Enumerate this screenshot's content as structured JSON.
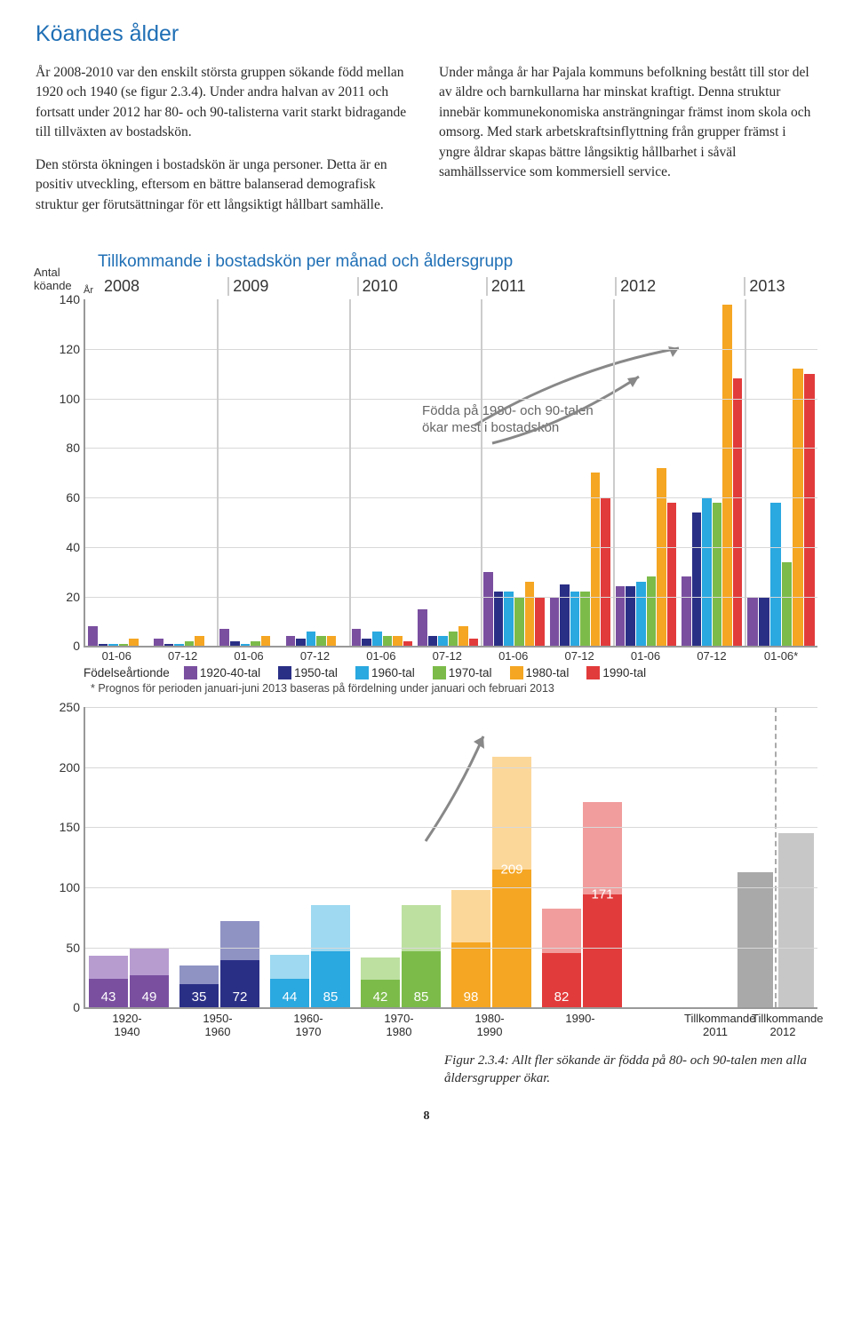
{
  "title": "Köandes ålder",
  "body": {
    "col1": [
      "År 2008-2010 var den enskilt största gruppen sökande född mellan 1920 och 1940 (se figur 2.3.4). Under andra halvan av 2011 och fortsatt under 2012 har 80- och 90-talisterna varit starkt bidragande till tillväxten av bostadskön.",
      "Den största ökningen i bostadskön är unga personer. Detta är en positiv utveckling, eftersom en bättre balanserad demografisk struktur ger förutsättningar för ett långsiktigt hållbart samhälle."
    ],
    "col2": [
      "Under många år har Pajala kommuns befolkning bestått till stor del av äldre och barnkullarna har minskat kraftigt. Denna struktur innebär kommunekonomiska ansträngningar främst inom skola och omsorg. Med stark arbetskraftsinflyttning från grupper främst i yngre åldrar skapas bättre långsiktig hållbarhet i såväl samhällsservice som kommersiell service."
    ]
  },
  "chart1": {
    "title": "Tillkommande i bostadskön per månad och åldersgrupp",
    "y_axis_label": "Antal\nköande",
    "year_prefix": "År",
    "years": [
      "2008",
      "2009",
      "2010",
      "2011",
      "2012",
      "2013"
    ],
    "halves": [
      "01-06",
      "07-12"
    ],
    "last_half": "01-06*",
    "ymax": 140,
    "yticks": [
      0,
      20,
      40,
      60,
      80,
      100,
      120,
      140
    ],
    "colors": {
      "1920-40-tal": "#7a4fa0",
      "1950-tal": "#2a2f86",
      "1960-tal": "#2aa8e0",
      "1970-tal": "#7cbb4a",
      "1980-tal": "#f5a623",
      "1990-tal": "#e23b3b"
    },
    "legend_label": "Födelseårtionde",
    "legend": [
      "1920-40-tal",
      "1950-tal",
      "1960-tal",
      "1970-tal",
      "1980-tal",
      "1990-tal"
    ],
    "annotation": "Födda på 1980- och 90-talen\nökar mest i bostadskön",
    "footnote": "* Prognos för perioden januari-juni 2013 baseras på fördelning under januari och februari 2013",
    "data": [
      {
        "year": "2008",
        "half": "01-06",
        "v": [
          8,
          1,
          1,
          1,
          3,
          0
        ]
      },
      {
        "year": "2008",
        "half": "07-12",
        "v": [
          3,
          1,
          1,
          2,
          4,
          0
        ]
      },
      {
        "year": "2009",
        "half": "01-06",
        "v": [
          7,
          2,
          1,
          2,
          4,
          0
        ]
      },
      {
        "year": "2009",
        "half": "07-12",
        "v": [
          4,
          3,
          6,
          4,
          4,
          0
        ]
      },
      {
        "year": "2010",
        "half": "01-06",
        "v": [
          7,
          3,
          6,
          4,
          4,
          2
        ]
      },
      {
        "year": "2010",
        "half": "07-12",
        "v": [
          15,
          4,
          4,
          6,
          8,
          3
        ]
      },
      {
        "year": "2011",
        "half": "01-06",
        "v": [
          30,
          22,
          22,
          20,
          26,
          20
        ]
      },
      {
        "year": "2011",
        "half": "07-12",
        "v": [
          20,
          25,
          22,
          22,
          70,
          60
        ]
      },
      {
        "year": "2012",
        "half": "01-06",
        "v": [
          24,
          24,
          26,
          28,
          72,
          58
        ]
      },
      {
        "year": "2012",
        "half": "07-12",
        "v": [
          28,
          54,
          60,
          58,
          138,
          108
        ]
      },
      {
        "year": "2013",
        "half": "01-06*",
        "v": [
          20,
          20,
          58,
          34,
          112,
          110
        ]
      }
    ]
  },
  "chart2": {
    "ymax": 250,
    "yticks": [
      0,
      50,
      100,
      150,
      200,
      250
    ],
    "pairs": [
      {
        "label": "1920-\n1940",
        "c": "#7a4fa0",
        "light": "#b79cd0",
        "v1": 43,
        "v2": 49
      },
      {
        "label": "1950-\n1960",
        "c": "#2a2f86",
        "light": "#8f93c4",
        "v1": 35,
        "v2": 72
      },
      {
        "label": "1960-\n1970",
        "c": "#2aa8e0",
        "light": "#9ed9f1",
        "v1": 44,
        "v2": 85
      },
      {
        "label": "1970-\n1980",
        "c": "#7cbb4a",
        "light": "#bde0a1",
        "v1": 42,
        "v2": 85
      },
      {
        "label": "1980-\n1990",
        "c": "#f5a623",
        "light": "#fcd79a",
        "v1": 98,
        "v2": 209
      },
      {
        "label": "1990-",
        "c": "#e23b3b",
        "light": "#f19d9d",
        "v1": 82,
        "v2": 171
      }
    ],
    "tillkommande": {
      "label1": "Tillkommande\n2011",
      "label2": "Tillkommande\n2012",
      "c1": "#a9a9a9",
      "c2": "#c7c7c7",
      "pct1": 45,
      "pct2": 58
    }
  },
  "caption": "Figur 2.3.4: Allt fler sökande är födda på 80- och 90-talen men alla åldersgrupper ökar.",
  "page": "8"
}
